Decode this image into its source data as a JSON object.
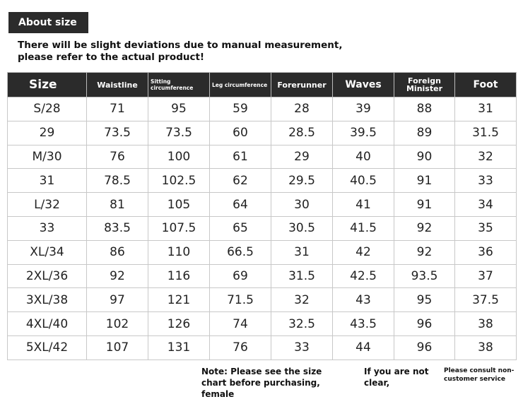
{
  "header": {
    "title": "About size",
    "subtitle": "There will be slight deviations due to manual measurement, please refer to the actual product!"
  },
  "table": {
    "columns": [
      "Size",
      "Waistline",
      "Sitting circumference",
      "Leg circumference",
      "Forerunner",
      "Waves",
      "Foreign Minister",
      "Foot"
    ],
    "rows": [
      [
        "S/28",
        71,
        95,
        59,
        28,
        39,
        88,
        31
      ],
      [
        "29",
        73.5,
        73.5,
        60,
        28.5,
        39.5,
        89,
        31.5
      ],
      [
        "M/30",
        76,
        100,
        61,
        29,
        40,
        90,
        32
      ],
      [
        "31",
        78.5,
        102.5,
        62,
        29.5,
        40.5,
        91,
        33
      ],
      [
        "L/32",
        81,
        105,
        64,
        30,
        41,
        91,
        34
      ],
      [
        "33",
        83.5,
        107.5,
        65,
        30.5,
        41.5,
        92,
        35
      ],
      [
        "XL/34",
        86,
        110,
        66.5,
        31,
        42,
        92,
        36
      ],
      [
        "2XL/36",
        92,
        116,
        69,
        31.5,
        42.5,
        93.5,
        37
      ],
      [
        "3XL/38",
        97,
        121,
        71.5,
        32,
        43,
        95,
        37.5
      ],
      [
        "4XL/40",
        102,
        126,
        74,
        32.5,
        43.5,
        96,
        38
      ],
      [
        "5XL/42",
        107,
        131,
        76,
        33,
        44,
        96,
        38
      ]
    ]
  },
  "footer": {
    "note": "Note: Please see the size chart before purchasing, female",
    "unclear": "If you are not clear,",
    "consult": "Please consult non-customer service"
  }
}
